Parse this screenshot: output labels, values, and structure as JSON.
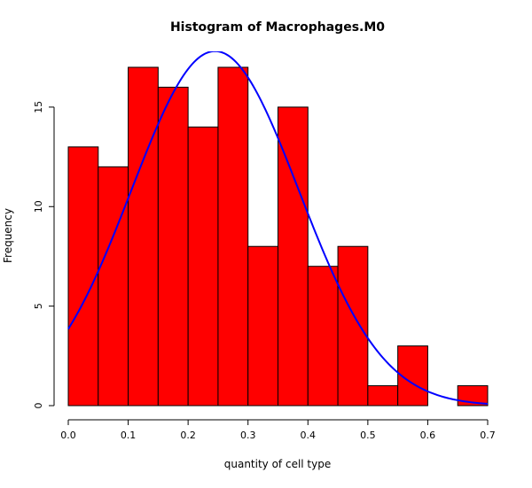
{
  "chart_data": {
    "type": "bar",
    "title": "Histogram of Macrophages.M0",
    "xlabel": "quantity of cell type",
    "ylabel": "Frequency",
    "bin_edges": [
      0,
      0.05,
      0.1,
      0.15,
      0.2,
      0.25,
      0.3,
      0.35,
      0.4,
      0.45,
      0.5,
      0.55,
      0.6,
      0.65,
      0.7
    ],
    "values": [
      13,
      12,
      17,
      16,
      14,
      17,
      8,
      15,
      7,
      8,
      1,
      3,
      0,
      1
    ],
    "xlim": [
      0,
      0.7
    ],
    "ylim": [
      0,
      17.8
    ],
    "x_ticks": [
      0,
      0.1,
      0.2,
      0.3,
      0.4,
      0.5,
      0.6,
      0.7
    ],
    "x_tick_labels": [
      "0.0",
      "0.1",
      "0.2",
      "0.3",
      "0.4",
      "0.5",
      "0.6",
      "0.7"
    ],
    "y_ticks": [
      0,
      5,
      10,
      15
    ],
    "y_tick_labels": [
      "0",
      "5",
      "10",
      "15"
    ],
    "bar_color": "#ff0000",
    "bar_edge_color": "#000000",
    "overlay": {
      "type": "normal-density-curve",
      "color": "#0000ff",
      "mean": 0.245,
      "sd": 0.14,
      "scale": 6.25
    },
    "grid": false,
    "legend": "none"
  }
}
